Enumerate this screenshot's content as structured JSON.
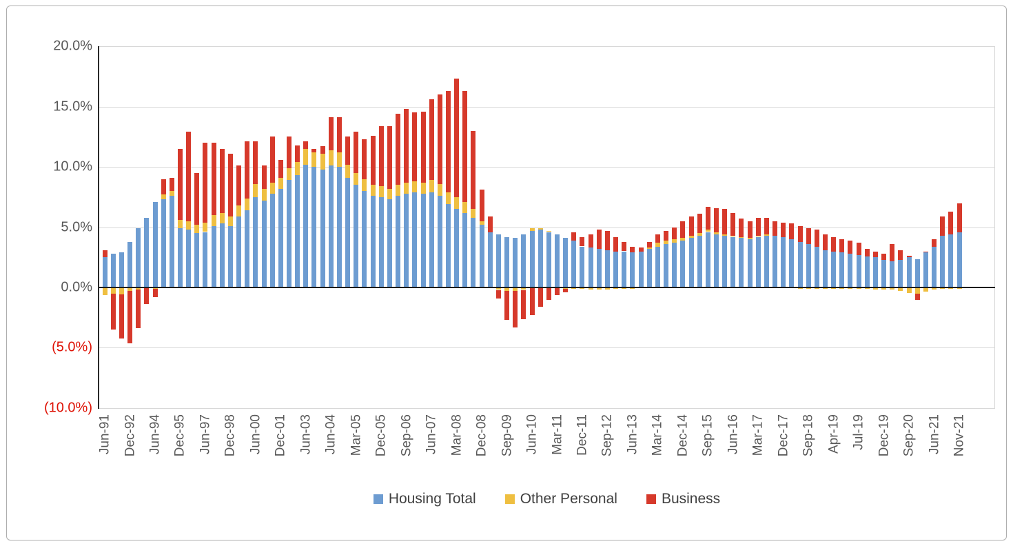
{
  "figure": {
    "background": "#ffffff",
    "border_color": "#aeaeae"
  },
  "legend": {
    "items": [
      {
        "label": "Housing Total",
        "color": "#6d9cd1"
      },
      {
        "label": "Other Personal",
        "color": "#efbf41"
      },
      {
        "label": "Business",
        "color": "#d6392b"
      }
    ]
  },
  "chart_data": {
    "type": "bar",
    "stacked": true,
    "title": "",
    "xlabel": "",
    "ylabel": "",
    "ylim": [
      -10,
      20
    ],
    "ytick_step": 5,
    "grid": true,
    "legend_position": "bottom",
    "y_tick_labels": [
      "20.0%",
      "15.0%",
      "10.0%",
      "5.0%",
      "0.0%",
      "(5.0%)",
      "(10.0%)"
    ],
    "n_bars": 103,
    "tick_interval": 3,
    "x_tick_labels": [
      "Jun-91",
      "Dec-92",
      "Jun-94",
      "Dec-95",
      "Jun-97",
      "Dec-98",
      "Jun-00",
      "Dec-01",
      "Jun-03",
      "Jun-04",
      "Mar-05",
      "Dec-05",
      "Sep-06",
      "Jun-07",
      "Mar-08",
      "Dec-08",
      "Sep-09",
      "Jun-10",
      "Mar-11",
      "Dec-11",
      "Sep-12",
      "Jun-13",
      "Mar-14",
      "Dec-14",
      "Sep-15",
      "Jun-16",
      "Mar-17",
      "Dec-17",
      "Sep-18",
      "Apr-19",
      "Jul-19",
      "Dec-19",
      "Sep-20",
      "Jun-21",
      "Nov-21"
    ],
    "series": [
      {
        "name": "Housing Total",
        "color": "#6d9cd1",
        "values": [
          2.5,
          2.8,
          2.9,
          3.8,
          4.9,
          5.8,
          7.1,
          7.3,
          7.6,
          4.9,
          4.8,
          4.5,
          4.6,
          5.1,
          5.3,
          5.1,
          5.9,
          6.4,
          7.5,
          7.2,
          7.8,
          8.2,
          8.9,
          9.3,
          10.2,
          10.0,
          9.8,
          10.1,
          10.0,
          9.1,
          8.5,
          8.0,
          7.6,
          7.5,
          7.3,
          7.6,
          7.8,
          7.9,
          7.8,
          7.9,
          7.6,
          6.9,
          6.5,
          6.2,
          5.8,
          5.2,
          4.6,
          4.4,
          4.2,
          4.1,
          4.4,
          4.7,
          4.8,
          4.6,
          4.4,
          4.1,
          3.9,
          3.4,
          3.3,
          3.2,
          3.1,
          3.0,
          3.0,
          2.9,
          3.0,
          3.2,
          3.4,
          3.6,
          3.7,
          3.9,
          4.1,
          4.3,
          4.6,
          4.4,
          4.3,
          4.2,
          4.1,
          4.0,
          4.2,
          4.3,
          4.3,
          4.2,
          4.0,
          3.8,
          3.6,
          3.4,
          3.1,
          3.0,
          2.9,
          2.8,
          2.7,
          2.6,
          2.5,
          2.3,
          2.2,
          2.3,
          2.5,
          2.35,
          2.9,
          3.4,
          4.3,
          4.4,
          4.6
        ]
      },
      {
        "name": "Other Personal",
        "color": "#efbf41",
        "values": [
          -0.65,
          -0.5,
          -0.55,
          -0.3,
          -0.15,
          -0.05,
          -0.1,
          0.4,
          0.4,
          0.7,
          0.7,
          0.7,
          0.8,
          0.9,
          0.9,
          0.8,
          0.9,
          1.0,
          1.1,
          1.0,
          0.9,
          0.9,
          1.0,
          1.1,
          1.3,
          1.2,
          1.3,
          1.3,
          1.2,
          1.1,
          1.0,
          1.0,
          0.9,
          0.9,
          0.9,
          0.9,
          0.9,
          0.9,
          0.9,
          1.0,
          1.0,
          1.0,
          1.0,
          0.9,
          0.7,
          0.3,
          0.0,
          -0.2,
          -0.3,
          -0.3,
          -0.2,
          0.2,
          0.1,
          0.1,
          0.0,
          -0.1,
          -0.1,
          -0.1,
          -0.2,
          -0.2,
          -0.2,
          -0.1,
          -0.1,
          -0.1,
          0.0,
          0.1,
          0.3,
          0.3,
          0.3,
          0.2,
          0.2,
          0.2,
          0.2,
          0.2,
          0.1,
          0.1,
          0.1,
          0.1,
          0.1,
          0.1,
          0.0,
          0.0,
          0.0,
          -0.1,
          -0.1,
          -0.1,
          -0.1,
          -0.1,
          -0.1,
          -0.1,
          -0.1,
          -0.1,
          -0.2,
          -0.2,
          -0.2,
          -0.3,
          -0.45,
          -0.5,
          -0.35,
          -0.2,
          -0.1,
          -0.1,
          -0.1
        ]
      },
      {
        "name": "Business",
        "color": "#d6392b",
        "values": [
          0.6,
          -3.0,
          -3.65,
          -4.3,
          -3.2,
          -1.3,
          -0.7,
          1.3,
          1.1,
          5.9,
          7.4,
          4.3,
          6.6,
          6.0,
          5.3,
          5.2,
          3.3,
          4.7,
          3.5,
          1.9,
          3.8,
          1.5,
          2.6,
          1.4,
          0.6,
          0.3,
          0.6,
          2.7,
          2.9,
          2.3,
          3.4,
          3.3,
          4.1,
          5.0,
          5.2,
          5.9,
          6.1,
          5.7,
          5.9,
          6.7,
          7.4,
          8.4,
          9.8,
          9.2,
          6.5,
          2.6,
          1.3,
          -0.7,
          -2.4,
          -3.0,
          -2.4,
          -2.3,
          -1.6,
          -1.0,
          -0.6,
          -0.3,
          0.7,
          0.8,
          1.1,
          1.6,
          1.6,
          1.2,
          0.8,
          0.5,
          0.3,
          0.5,
          0.7,
          0.8,
          1.0,
          1.4,
          1.6,
          1.6,
          1.9,
          2.0,
          2.1,
          1.9,
          1.5,
          1.4,
          1.5,
          1.4,
          1.2,
          1.2,
          1.3,
          1.3,
          1.3,
          1.4,
          1.3,
          1.2,
          1.1,
          1.1,
          1.0,
          0.6,
          0.5,
          0.5,
          1.4,
          0.8,
          0.15,
          -0.55,
          0.05,
          0.6,
          1.6,
          1.9,
          2.4
        ]
      }
    ]
  }
}
